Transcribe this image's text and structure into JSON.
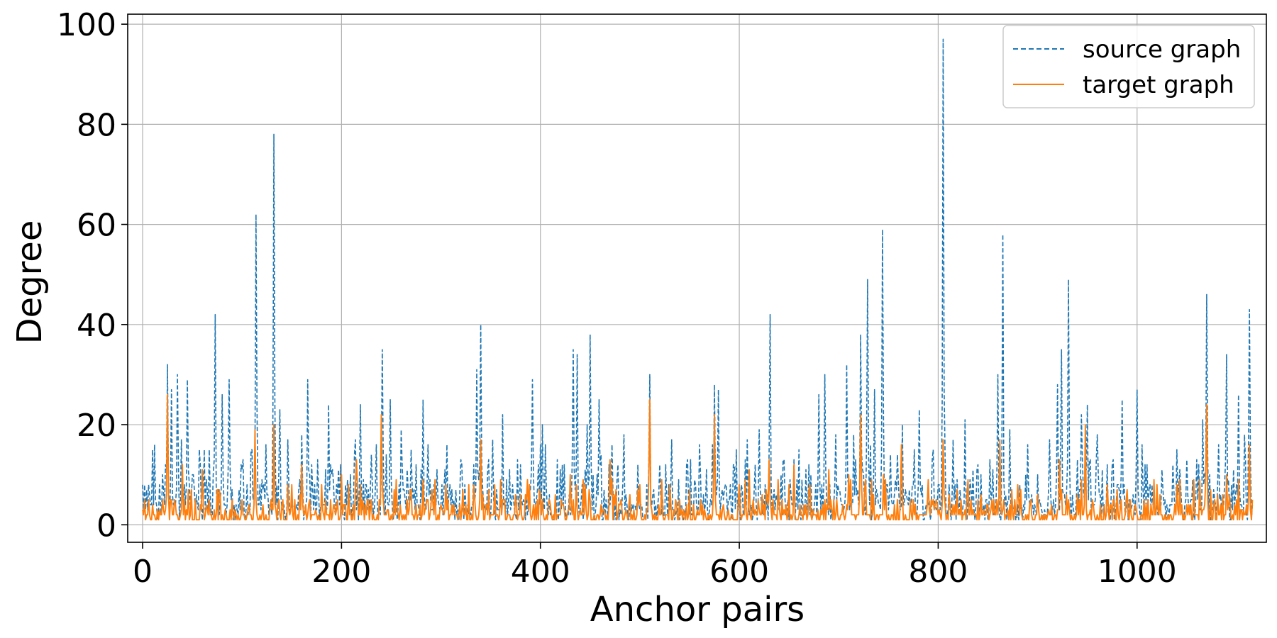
{
  "chart_data": {
    "type": "line",
    "title": "",
    "xlabel": "Anchor pairs",
    "ylabel": "Degree",
    "xlim": [
      -15,
      1130
    ],
    "ylim": [
      -3.5,
      102
    ],
    "x_ticks": [
      0,
      200,
      400,
      600,
      800,
      1000
    ],
    "y_ticks": [
      0,
      20,
      40,
      60,
      80,
      100
    ],
    "grid": true,
    "legend_position": "top-right",
    "n_points": 1117,
    "series": [
      {
        "name": "source graph",
        "style": "dashed",
        "color": "#1f77b4",
        "peaks": [
          [
            0,
            8
          ],
          [
            7,
            6
          ],
          [
            12,
            16
          ],
          [
            20,
            10
          ],
          [
            25,
            32
          ],
          [
            29,
            27
          ],
          [
            35,
            30
          ],
          [
            39,
            17
          ],
          [
            45,
            29
          ],
          [
            50,
            10
          ],
          [
            57,
            15
          ],
          [
            62,
            15
          ],
          [
            73,
            42
          ],
          [
            80,
            26
          ],
          [
            87,
            29
          ],
          [
            100,
            11
          ],
          [
            110,
            15
          ],
          [
            114,
            62
          ],
          [
            124,
            16
          ],
          [
            132,
            78
          ],
          [
            138,
            23
          ],
          [
            146,
            17
          ],
          [
            160,
            18
          ],
          [
            166,
            29
          ],
          [
            176,
            13
          ],
          [
            187,
            24
          ],
          [
            197,
            11
          ],
          [
            214,
            17
          ],
          [
            219,
            24
          ],
          [
            230,
            14
          ],
          [
            241,
            35
          ],
          [
            249,
            25
          ],
          [
            260,
            19
          ],
          [
            270,
            15
          ],
          [
            282,
            25
          ],
          [
            296,
            11
          ],
          [
            306,
            16
          ],
          [
            320,
            13
          ],
          [
            336,
            31
          ],
          [
            340,
            40
          ],
          [
            352,
            17
          ],
          [
            362,
            22
          ],
          [
            380,
            12
          ],
          [
            392,
            29
          ],
          [
            402,
            20
          ],
          [
            420,
            11
          ],
          [
            433,
            35
          ],
          [
            437,
            34
          ],
          [
            447,
            20
          ],
          [
            450,
            38
          ],
          [
            459,
            25
          ],
          [
            472,
            16
          ],
          [
            484,
            18
          ],
          [
            498,
            12
          ],
          [
            510,
            30
          ],
          [
            520,
            12
          ],
          [
            532,
            17
          ],
          [
            548,
            13
          ],
          [
            560,
            16
          ],
          [
            575,
            28
          ],
          [
            579,
            27
          ],
          [
            595,
            12
          ],
          [
            608,
            17
          ],
          [
            620,
            19
          ],
          [
            631,
            42
          ],
          [
            642,
            10
          ],
          [
            660,
            15
          ],
          [
            670,
            12
          ],
          [
            680,
            26
          ],
          [
            686,
            30
          ],
          [
            697,
            18
          ],
          [
            708,
            32
          ],
          [
            715,
            18
          ],
          [
            722,
            38
          ],
          [
            729,
            49
          ],
          [
            736,
            27
          ],
          [
            744,
            59
          ],
          [
            752,
            14
          ],
          [
            764,
            20
          ],
          [
            776,
            15
          ],
          [
            781,
            23
          ],
          [
            795,
            15
          ],
          [
            805,
            97
          ],
          [
            815,
            17
          ],
          [
            827,
            21
          ],
          [
            840,
            12
          ],
          [
            852,
            13
          ],
          [
            860,
            30
          ],
          [
            865,
            58
          ],
          [
            872,
            19
          ],
          [
            890,
            16
          ],
          [
            900,
            10
          ],
          [
            912,
            17
          ],
          [
            920,
            28
          ],
          [
            924,
            35
          ],
          [
            931,
            49
          ],
          [
            944,
            22
          ],
          [
            950,
            24
          ],
          [
            960,
            18
          ],
          [
            970,
            12
          ],
          [
            985,
            25
          ],
          [
            1000,
            27
          ],
          [
            1010,
            12
          ],
          [
            1025,
            11
          ],
          [
            1040,
            15
          ],
          [
            1050,
            13
          ],
          [
            1060,
            13
          ],
          [
            1066,
            21
          ],
          [
            1070,
            46
          ],
          [
            1082,
            16
          ],
          [
            1090,
            34
          ],
          [
            1102,
            26
          ],
          [
            1108,
            18
          ],
          [
            1113,
            43
          ],
          [
            1116,
            4
          ]
        ]
      },
      {
        "name": "target graph",
        "style": "solid",
        "color": "#ff7f0e",
        "peaks": [
          [
            0,
            3
          ],
          [
            10,
            4
          ],
          [
            25,
            26
          ],
          [
            40,
            12
          ],
          [
            60,
            11
          ],
          [
            75,
            7
          ],
          [
            90,
            5
          ],
          [
            113,
            19
          ],
          [
            132,
            20
          ],
          [
            150,
            8
          ],
          [
            160,
            12
          ],
          [
            180,
            8
          ],
          [
            200,
            10
          ],
          [
            215,
            13
          ],
          [
            240,
            22
          ],
          [
            255,
            9
          ],
          [
            270,
            7
          ],
          [
            282,
            9
          ],
          [
            305,
            8
          ],
          [
            322,
            7
          ],
          [
            340,
            17
          ],
          [
            360,
            9
          ],
          [
            385,
            6
          ],
          [
            400,
            6
          ],
          [
            430,
            10
          ],
          [
            445,
            8
          ],
          [
            470,
            13
          ],
          [
            500,
            8
          ],
          [
            510,
            25
          ],
          [
            530,
            8
          ],
          [
            550,
            7
          ],
          [
            575,
            22
          ],
          [
            600,
            8
          ],
          [
            610,
            11
          ],
          [
            630,
            13
          ],
          [
            655,
            12
          ],
          [
            670,
            7
          ],
          [
            690,
            11
          ],
          [
            710,
            10
          ],
          [
            722,
            22
          ],
          [
            745,
            10
          ],
          [
            763,
            16
          ],
          [
            790,
            9
          ],
          [
            805,
            17
          ],
          [
            830,
            9
          ],
          [
            862,
            17
          ],
          [
            880,
            8
          ],
          [
            900,
            6
          ],
          [
            922,
            13
          ],
          [
            948,
            20
          ],
          [
            970,
            8
          ],
          [
            990,
            7
          ],
          [
            1020,
            8
          ],
          [
            1040,
            8
          ],
          [
            1070,
            24
          ],
          [
            1090,
            10
          ],
          [
            1113,
            16
          ]
        ]
      }
    ]
  }
}
